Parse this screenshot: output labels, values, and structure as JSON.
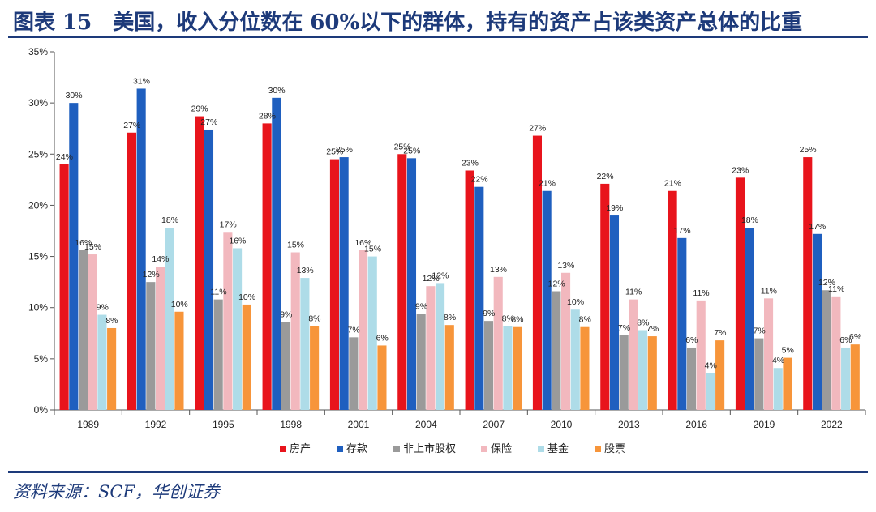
{
  "header": {
    "title": "图表 15　美国，收入分位数在 60%以下的群体，持有的资产占该类资产总体的比重"
  },
  "footer": {
    "source": "资料来源：SCF，华创证券"
  },
  "chart_data": {
    "type": "bar",
    "categories": [
      "1989",
      "1992",
      "1995",
      "1998",
      "2001",
      "2004",
      "2007",
      "2010",
      "2013",
      "2016",
      "2019",
      "2022"
    ],
    "ylim": [
      0,
      35
    ],
    "yticks": [
      0,
      5,
      10,
      15,
      20,
      25,
      30,
      35
    ],
    "ytick_labels": [
      "0%",
      "5%",
      "10%",
      "15%",
      "20%",
      "25%",
      "30%",
      "35%"
    ],
    "grid": false,
    "legend_position": "bottom",
    "series": [
      {
        "name": "房产",
        "color": "#e8141c",
        "values": [
          24.0,
          27.1,
          28.7,
          28.0,
          24.5,
          25.0,
          23.4,
          26.8,
          22.1,
          21.4,
          22.7,
          24.7
        ],
        "labels": [
          "24%",
          "27%",
          "29%",
          "28%",
          "25%",
          "25%",
          "23%",
          "27%",
          "22%",
          "21%",
          "23%",
          "25%"
        ]
      },
      {
        "name": "存款",
        "color": "#1f5fbf",
        "values": [
          30.0,
          31.4,
          27.4,
          30.5,
          24.7,
          24.6,
          21.8,
          21.4,
          19.0,
          16.8,
          17.8,
          17.2
        ],
        "labels": [
          "30%",
          "31%",
          "27%",
          "30%",
          "25%",
          "25%",
          "22%",
          "21%",
          "19%",
          "17%",
          "18%",
          "17%"
        ]
      },
      {
        "name": "非上市股权",
        "color": "#9a9a9a",
        "values": [
          15.6,
          12.5,
          10.8,
          8.6,
          7.1,
          9.4,
          8.7,
          11.6,
          7.3,
          6.1,
          7.0,
          11.7
        ],
        "labels": [
          "16%",
          "12%",
          "11%",
          "9%",
          "7%",
          "9%",
          "9%",
          "12%",
          "7%",
          "6%",
          "7%",
          "12%"
        ]
      },
      {
        "name": "保险",
        "color": "#f2b8be",
        "values": [
          15.2,
          14.0,
          17.4,
          15.4,
          15.6,
          12.1,
          13.0,
          13.4,
          10.8,
          10.7,
          10.9,
          11.1
        ],
        "labels": [
          "15%",
          "14%",
          "17%",
          "15%",
          "16%",
          "12%",
          "13%",
          "13%",
          "11%",
          "11%",
          "11%",
          "11%"
        ]
      },
      {
        "name": "基金",
        "color": "#aedce8",
        "values": [
          9.3,
          17.8,
          15.8,
          12.9,
          15.0,
          12.4,
          8.2,
          9.8,
          7.8,
          3.6,
          4.1,
          6.1
        ],
        "labels": [
          "9%",
          "18%",
          "16%",
          "13%",
          "15%",
          "12%",
          "8%",
          "10%",
          "8%",
          "4%",
          "4%",
          "6%"
        ]
      },
      {
        "name": "股票",
        "color": "#f7953a",
        "values": [
          8.0,
          9.6,
          10.3,
          8.2,
          6.3,
          8.3,
          8.1,
          8.1,
          7.2,
          6.8,
          5.1,
          6.4
        ],
        "labels": [
          "8%",
          "10%",
          "10%",
          "8%",
          "6%",
          "8%",
          "8%",
          "8%",
          "7%",
          "7%",
          "5%",
          "6%"
        ]
      }
    ]
  }
}
